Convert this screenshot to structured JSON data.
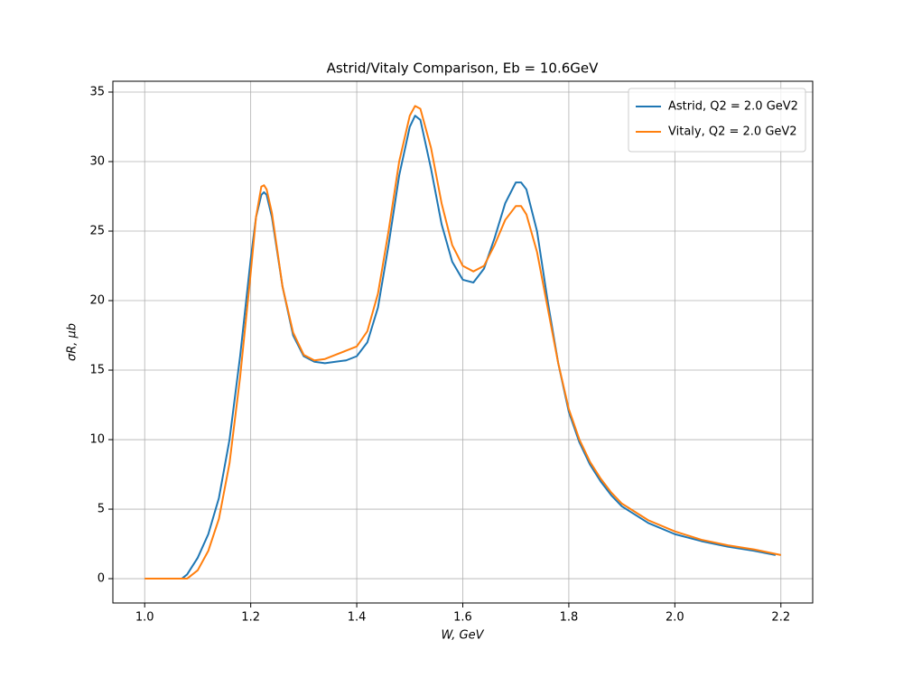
{
  "chart_data": {
    "type": "line",
    "title": "Astrid/Vitaly Comparison, Eb = 10.6GeV",
    "x_label": "W, GeV",
    "y_label": "σR, μb",
    "xlim": [
      0.94,
      2.26
    ],
    "ylim": [
      -1.75,
      35.78
    ],
    "xticks": [
      {
        "value": 1,
        "label": "1.0"
      },
      1.2,
      1.4,
      1.6,
      1.8,
      {
        "value": 2,
        "label": "2.0"
      },
      2.2
    ],
    "yticks": [
      0,
      5,
      10,
      15,
      20,
      25,
      30,
      35
    ],
    "grid": true,
    "legend": "upper-right",
    "series": [
      {
        "name": "Astrid, Q2 = 2.0 GeV2",
        "color": "#1f77b4",
        "x": [
          1.07,
          1.08,
          1.1,
          1.12,
          1.14,
          1.16,
          1.18,
          1.2,
          1.21,
          1.22,
          1.225,
          1.23,
          1.24,
          1.26,
          1.28,
          1.3,
          1.32,
          1.34,
          1.36,
          1.38,
          1.4,
          1.42,
          1.44,
          1.46,
          1.48,
          1.5,
          1.51,
          1.52,
          1.54,
          1.56,
          1.58,
          1.6,
          1.62,
          1.64,
          1.66,
          1.68,
          1.7,
          1.71,
          1.72,
          1.74,
          1.76,
          1.78,
          1.8,
          1.82,
          1.84,
          1.86,
          1.88,
          1.9,
          1.95,
          2.0,
          2.05,
          2.1,
          2.15,
          2.19
        ],
        "values": [
          0,
          0.3,
          1.5,
          3.2,
          5.8,
          10,
          16,
          23,
          26,
          27.6,
          27.8,
          27.6,
          26,
          21,
          17.5,
          16,
          15.6,
          15.5,
          15.6,
          15.7,
          16,
          17,
          19.5,
          24,
          29,
          32.5,
          33.3,
          33,
          29.5,
          25.5,
          22.8,
          21.5,
          21.3,
          22.3,
          24.5,
          27,
          28.5,
          28.5,
          28,
          25,
          20,
          15.5,
          12,
          9.8,
          8.2,
          7,
          6,
          5.2,
          4.0,
          3.2,
          2.7,
          2.3,
          2.0,
          1.7
        ]
      },
      {
        "name": "Vitaly, Q2 = 2.0 GeV2",
        "color": "#ff7f0e",
        "x": [
          1.0,
          1.05,
          1.08,
          1.1,
          1.12,
          1.14,
          1.16,
          1.18,
          1.2,
          1.21,
          1.22,
          1.225,
          1.23,
          1.24,
          1.26,
          1.28,
          1.3,
          1.32,
          1.34,
          1.36,
          1.38,
          1.4,
          1.42,
          1.44,
          1.46,
          1.48,
          1.5,
          1.51,
          1.52,
          1.54,
          1.56,
          1.58,
          1.6,
          1.62,
          1.64,
          1.66,
          1.68,
          1.7,
          1.71,
          1.72,
          1.74,
          1.76,
          1.78,
          1.8,
          1.82,
          1.84,
          1.86,
          1.88,
          1.9,
          1.95,
          2.0,
          2.05,
          2.1,
          2.15,
          2.2
        ],
        "values": [
          0,
          0,
          0,
          0.6,
          2.0,
          4.3,
          8.3,
          14.5,
          22,
          26,
          28.2,
          28.3,
          28,
          26.3,
          21,
          17.7,
          16.1,
          15.7,
          15.8,
          16.1,
          16.4,
          16.7,
          17.8,
          20.5,
          25,
          30,
          33.3,
          34,
          33.8,
          31,
          27,
          24,
          22.5,
          22.1,
          22.5,
          24,
          25.8,
          26.8,
          26.8,
          26.2,
          23.5,
          19.5,
          15.5,
          12.2,
          10,
          8.4,
          7.2,
          6.2,
          5.4,
          4.2,
          3.4,
          2.8,
          2.4,
          2.1,
          1.7
        ]
      }
    ]
  }
}
